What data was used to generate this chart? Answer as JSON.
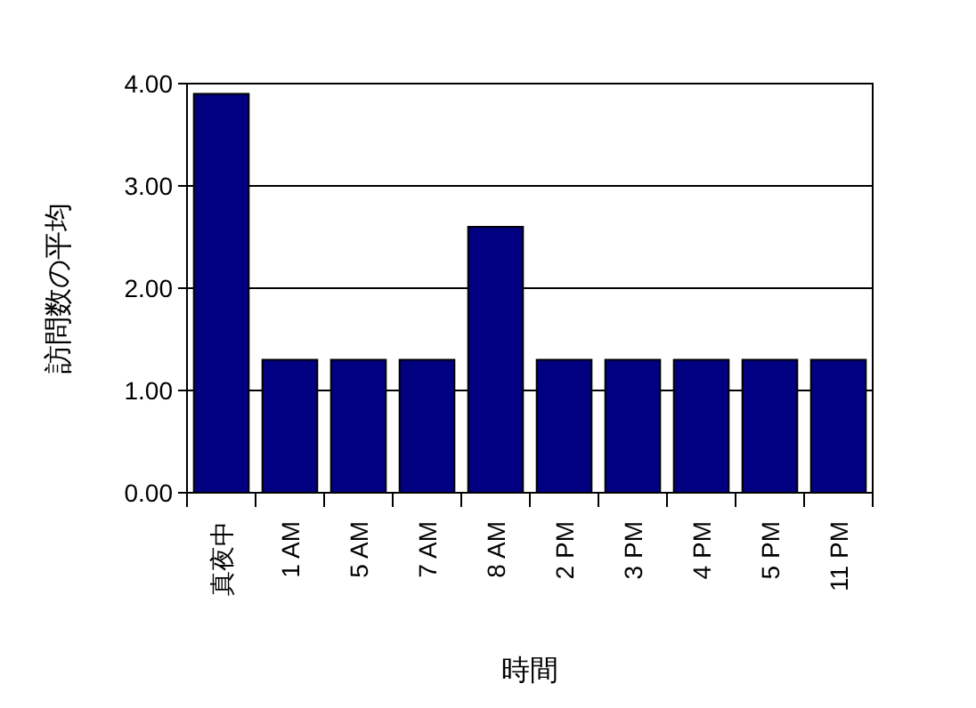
{
  "chart_data": {
    "type": "bar",
    "xlabel": "時間",
    "ylabel": "訪問数の平均",
    "categories": [
      "真夜中",
      "1 AM",
      "5 AM",
      "7 AM",
      "8 AM",
      "2 PM",
      "3 PM",
      "4 PM",
      "5 PM",
      "11 PM"
    ],
    "values": [
      3.9,
      1.3,
      1.3,
      1.3,
      2.6,
      1.3,
      1.3,
      1.3,
      1.3,
      1.3
    ],
    "color": "#000080",
    "ylim": [
      0,
      4
    ],
    "yticks": [
      {
        "value": 0,
        "label": "0.00"
      },
      {
        "value": 1,
        "label": "1.00"
      },
      {
        "value": 2,
        "label": "2.00"
      },
      {
        "value": 3,
        "label": "3.00"
      },
      {
        "value": 4,
        "label": "4.00"
      }
    ],
    "grid": "y"
  }
}
